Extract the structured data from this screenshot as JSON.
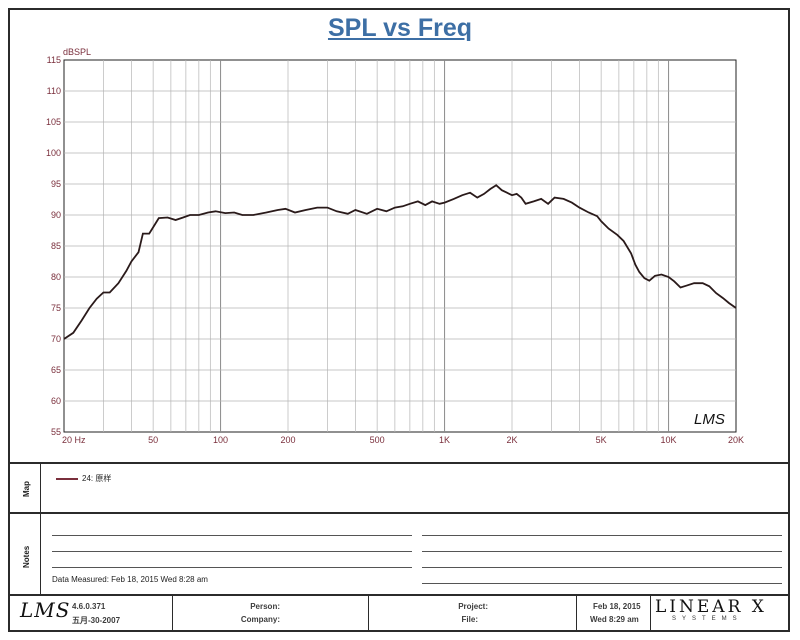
{
  "chart_data": {
    "type": "line",
    "title": "SPL vs Freq",
    "xlabel": "",
    "ylabel": "dBSPL",
    "x_scale": "log",
    "xlim": [
      20,
      20000
    ],
    "ylim": [
      55,
      115
    ],
    "grid": true,
    "y_ticks": [
      "115",
      "110",
      "105",
      "100",
      "95",
      "90",
      "85",
      "80",
      "75",
      "70",
      "65",
      "60",
      "55"
    ],
    "x_tick_labels": [
      {
        "f": 20,
        "label": "20 Hz"
      },
      {
        "f": 50,
        "label": "50"
      },
      {
        "f": 100,
        "label": "100"
      },
      {
        "f": 200,
        "label": "200"
      },
      {
        "f": 500,
        "label": "500"
      },
      {
        "f": 1000,
        "label": "1K"
      },
      {
        "f": 2000,
        "label": "2K"
      },
      {
        "f": 5000,
        "label": "5K"
      },
      {
        "f": 10000,
        "label": "10K"
      },
      {
        "f": 20000,
        "label": "20K"
      }
    ],
    "series": [
      {
        "name": "24: 原样",
        "color": "#2a1a1a",
        "points": [
          [
            20,
            70
          ],
          [
            22,
            71
          ],
          [
            24,
            73
          ],
          [
            26,
            75
          ],
          [
            28,
            76.5
          ],
          [
            30,
            77.5
          ],
          [
            32,
            77.5
          ],
          [
            35,
            79
          ],
          [
            38,
            81
          ],
          [
            40,
            82.5
          ],
          [
            43,
            84
          ],
          [
            45,
            87
          ],
          [
            48,
            87
          ],
          [
            50,
            88
          ],
          [
            53,
            89.5
          ],
          [
            58,
            89.6
          ],
          [
            63,
            89.2
          ],
          [
            68,
            89.6
          ],
          [
            73,
            90
          ],
          [
            80,
            90
          ],
          [
            88,
            90.4
          ],
          [
            95,
            90.6
          ],
          [
            105,
            90.3
          ],
          [
            115,
            90.4
          ],
          [
            125,
            90.0
          ],
          [
            140,
            90.0
          ],
          [
            160,
            90.4
          ],
          [
            180,
            90.8
          ],
          [
            195,
            91.0
          ],
          [
            215,
            90.4
          ],
          [
            240,
            90.8
          ],
          [
            270,
            91.2
          ],
          [
            300,
            91.2
          ],
          [
            330,
            90.6
          ],
          [
            370,
            90.2
          ],
          [
            400,
            90.8
          ],
          [
            450,
            90.2
          ],
          [
            500,
            91.0
          ],
          [
            550,
            90.6
          ],
          [
            600,
            91.2
          ],
          [
            650,
            91.4
          ],
          [
            700,
            91.8
          ],
          [
            760,
            92.2
          ],
          [
            820,
            91.6
          ],
          [
            880,
            92.2
          ],
          [
            950,
            91.8
          ],
          [
            1000,
            92.0
          ],
          [
            1100,
            92.6
          ],
          [
            1200,
            93.2
          ],
          [
            1300,
            93.6
          ],
          [
            1400,
            92.8
          ],
          [
            1500,
            93.4
          ],
          [
            1600,
            94.2
          ],
          [
            1700,
            94.8
          ],
          [
            1800,
            94.0
          ],
          [
            1900,
            93.6
          ],
          [
            2000,
            93.2
          ],
          [
            2100,
            93.4
          ],
          [
            2200,
            92.8
          ],
          [
            2300,
            91.8
          ],
          [
            2500,
            92.2
          ],
          [
            2700,
            92.6
          ],
          [
            2900,
            91.8
          ],
          [
            3100,
            92.8
          ],
          [
            3400,
            92.6
          ],
          [
            3700,
            92.0
          ],
          [
            4000,
            91.2
          ],
          [
            4400,
            90.4
          ],
          [
            4800,
            89.8
          ],
          [
            5000,
            89.0
          ],
          [
            5400,
            87.8
          ],
          [
            5900,
            86.8
          ],
          [
            6300,
            85.8
          ],
          [
            6800,
            83.8
          ],
          [
            7100,
            82.0
          ],
          [
            7400,
            80.8
          ],
          [
            7800,
            79.8
          ],
          [
            8200,
            79.4
          ],
          [
            8700,
            80.2
          ],
          [
            9300,
            80.4
          ],
          [
            10000,
            80.0
          ],
          [
            10600,
            79.3
          ],
          [
            11300,
            78.3
          ],
          [
            12000,
            78.6
          ],
          [
            13000,
            79.0
          ],
          [
            14200,
            79.0
          ],
          [
            15200,
            78.5
          ],
          [
            16300,
            77.4
          ],
          [
            17500,
            76.6
          ],
          [
            18600,
            75.8
          ],
          [
            20000,
            75.0
          ]
        ]
      }
    ]
  },
  "panels": {
    "map_label": "Map",
    "notes_label": "Notes",
    "legend_entry": "24: 原样",
    "data_measured": "Data Measured: Feb 18, 2015  Wed  8:28 am"
  },
  "footer": {
    "logo_text": "LMS",
    "version": "4.6.0.371",
    "build_date": "五月-30-2007",
    "person_label": "Person:",
    "company_label": "Company:",
    "project_label": "Project:",
    "file_label": "File:",
    "date": "Feb 18, 2015",
    "time": "Wed  8:29 am",
    "brand": "LINEAR X",
    "brand_sub": "SYSTEMS"
  },
  "watermark": "LMS"
}
